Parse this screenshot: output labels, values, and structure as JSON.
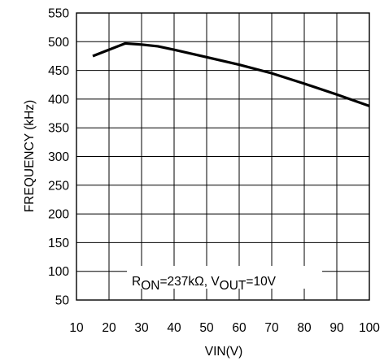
{
  "chart_data": {
    "type": "line",
    "xlabel": "VIN(V)",
    "ylabel": "FREQUENCY (kHz)",
    "xlim": [
      10,
      100
    ],
    "ylim": [
      50,
      550
    ],
    "x_ticks": [
      "10",
      "20",
      "30",
      "40",
      "50",
      "60",
      "70",
      "80",
      "90",
      "100"
    ],
    "y_ticks": [
      "550",
      "500",
      "450",
      "400",
      "350",
      "300",
      "250",
      "200",
      "150",
      "100",
      "50"
    ],
    "grid": true,
    "series": [
      {
        "x": [
          15,
          25,
          30,
          35,
          40,
          50,
          60,
          70,
          80,
          90,
          100
        ],
        "y": [
          475,
          497,
          495,
          492,
          486,
          473,
          460,
          445,
          427,
          408,
          388
        ]
      }
    ],
    "annotation": {
      "r_main": "R",
      "r_sub": "ON",
      "r_value": "=237kΩ, ",
      "v_main": "V",
      "v_sub": "OUT",
      "v_value": "=10V"
    }
  }
}
